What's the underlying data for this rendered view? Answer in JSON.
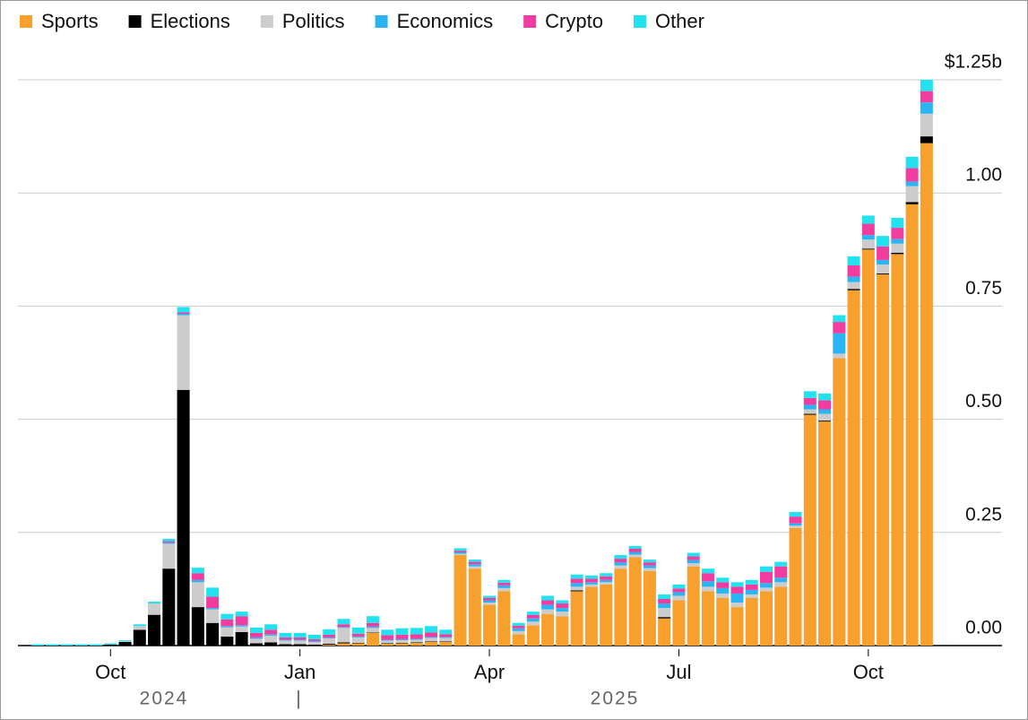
{
  "chart_data": {
    "type": "stacked-bar",
    "categories": [
      null,
      null,
      null,
      null,
      null,
      "Oct",
      null,
      null,
      null,
      null,
      null,
      null,
      null,
      null,
      null,
      null,
      null,
      null,
      "Jan",
      null,
      null,
      null,
      null,
      null,
      null,
      null,
      null,
      null,
      null,
      null,
      null,
      "Apr",
      null,
      null,
      null,
      null,
      null,
      null,
      null,
      null,
      null,
      null,
      null,
      null,
      "Jul",
      null,
      null,
      null,
      null,
      null,
      null,
      null,
      null,
      null,
      null,
      null,
      null,
      "Oct",
      null,
      null,
      null,
      null
    ],
    "year_labels": [
      "2024",
      "2025"
    ],
    "series": [
      {
        "name": "Sports",
        "color": "#f8a02d",
        "values": [
          0,
          0,
          0,
          0,
          0,
          0,
          0,
          0,
          0,
          0,
          0,
          0,
          0,
          0,
          0,
          0,
          0,
          0,
          0,
          0,
          0.002,
          0.005,
          0.005,
          0.028,
          0.004,
          0.005,
          0.006,
          0.008,
          0.008,
          0.2,
          0.17,
          0.09,
          0.12,
          0.025,
          0.045,
          0.07,
          0.065,
          0.12,
          0.13,
          0.135,
          0.17,
          0.195,
          0.165,
          0.06,
          0.1,
          0.175,
          0.12,
          0.105,
          0.085,
          0.105,
          0.12,
          0.13,
          0.26,
          0.51,
          0.495,
          0.635,
          0.785,
          0.875,
          0.82,
          0.865,
          0.975,
          1.11
        ]
      },
      {
        "name": "Elections",
        "color": "#000000",
        "values": [
          0,
          0,
          0,
          0,
          0,
          0.002,
          0.008,
          0.035,
          0.068,
          0.17,
          0.565,
          0.085,
          0.05,
          0.02,
          0.03,
          0.005,
          0.007,
          0.003,
          0.003,
          0.002,
          0.002,
          0.002,
          0.001,
          0.001,
          0.001,
          0.001,
          0.001,
          0.001,
          0.001,
          0,
          0,
          0,
          0,
          0,
          0,
          0,
          0,
          0.002,
          0,
          0,
          0,
          0,
          0,
          0.003,
          0,
          0,
          0,
          0,
          0,
          0,
          0,
          0,
          0,
          0.002,
          0.002,
          0,
          0.003,
          0.002,
          0.002,
          0.003,
          0.005,
          0.015
        ]
      },
      {
        "name": "Politics",
        "color": "#cccccc",
        "values": [
          0,
          0,
          0,
          0,
          0,
          0,
          0.002,
          0.008,
          0.025,
          0.055,
          0.165,
          0.055,
          0.03,
          0.02,
          0.012,
          0.01,
          0.015,
          0.008,
          0.008,
          0.006,
          0.012,
          0.032,
          0.012,
          0.01,
          0.006,
          0.006,
          0.006,
          0.008,
          0.008,
          0.003,
          0.005,
          0.005,
          0.007,
          0.007,
          0.008,
          0.01,
          0.01,
          0.008,
          0.005,
          0.005,
          0.007,
          0.006,
          0.006,
          0.02,
          0.01,
          0.007,
          0.01,
          0.01,
          0.01,
          0.008,
          0.008,
          0.01,
          0.005,
          0.01,
          0.015,
          0.01,
          0.015,
          0.02,
          0.02,
          0.02,
          0.035,
          0.05
        ]
      },
      {
        "name": "Economics",
        "color": "#2bb4f4",
        "values": [
          0,
          0,
          0,
          0,
          0,
          0,
          0,
          0,
          0,
          0.003,
          0.003,
          0.005,
          0.003,
          0.003,
          0.003,
          0.003,
          0.003,
          0.002,
          0.002,
          0.002,
          0.002,
          0.002,
          0.002,
          0.003,
          0.002,
          0.002,
          0.002,
          0.002,
          0.002,
          0.003,
          0.005,
          0.005,
          0.006,
          0.006,
          0.007,
          0.01,
          0.008,
          0.008,
          0.005,
          0.005,
          0.007,
          0.006,
          0.006,
          0.01,
          0.008,
          0.007,
          0.012,
          0.012,
          0.02,
          0.01,
          0.01,
          0.01,
          0.005,
          0.01,
          0.01,
          0.045,
          0.012,
          0.01,
          0.01,
          0.01,
          0.01,
          0.025
        ]
      },
      {
        "name": "Crypto",
        "color": "#f23ca0",
        "values": [
          0,
          0,
          0,
          0,
          0,
          0,
          0,
          0,
          0,
          0.003,
          0.003,
          0.015,
          0.025,
          0.015,
          0.02,
          0.01,
          0.01,
          0.005,
          0.005,
          0.004,
          0.006,
          0.006,
          0.006,
          0.008,
          0.01,
          0.01,
          0.01,
          0.01,
          0.006,
          0.003,
          0.005,
          0.005,
          0.006,
          0.006,
          0.008,
          0.01,
          0.01,
          0.01,
          0.008,
          0.008,
          0.008,
          0.007,
          0.007,
          0.01,
          0.008,
          0.008,
          0.018,
          0.013,
          0.015,
          0.012,
          0.025,
          0.025,
          0.015,
          0.015,
          0.02,
          0.025,
          0.025,
          0.025,
          0.03,
          0.025,
          0.03,
          0.025
        ]
      },
      {
        "name": "Other",
        "color": "#22e2f0",
        "values": [
          0.003,
          0.003,
          0.003,
          0.003,
          0.003,
          0.003,
          0.002,
          0.004,
          0.004,
          0.005,
          0.012,
          0.012,
          0.02,
          0.012,
          0.01,
          0.012,
          0.012,
          0.01,
          0.01,
          0.01,
          0.012,
          0.012,
          0.014,
          0.015,
          0.012,
          0.014,
          0.014,
          0.014,
          0.01,
          0.006,
          0.005,
          0.005,
          0.006,
          0.006,
          0.007,
          0.01,
          0.007,
          0.009,
          0.007,
          0.007,
          0.008,
          0.006,
          0.006,
          0.01,
          0.009,
          0.008,
          0.01,
          0.01,
          0.01,
          0.01,
          0.012,
          0.01,
          0.01,
          0.015,
          0.015,
          0.015,
          0.02,
          0.018,
          0.023,
          0.022,
          0.025,
          0.025
        ]
      }
    ],
    "ylim": [
      0,
      1.25
    ],
    "yticks": [
      0,
      0.25,
      0.5,
      0.75,
      1,
      1.25
    ],
    "ytick_labels": [
      "0.00",
      "0.25",
      "0.50",
      "0.75",
      "1.00",
      "$1.25b"
    ],
    "grid": true
  }
}
